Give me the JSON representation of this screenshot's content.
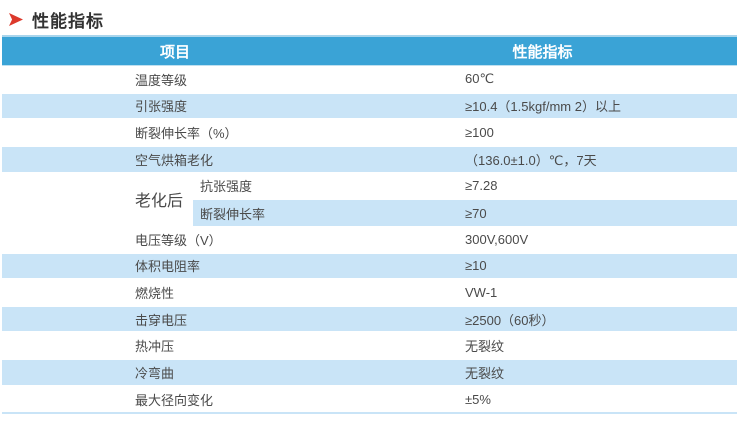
{
  "page": {
    "title": "性能指标"
  },
  "colors": {
    "header_bg": "#3AA3D6",
    "stripe_bg": "#C9E4F7",
    "accent_red": "#DC392C"
  },
  "table": {
    "header": {
      "col1": "项目",
      "col2": "性能指标"
    },
    "rows": [
      {
        "label": "温度等级",
        "value": "60℃",
        "striped": false
      },
      {
        "label": "引张强度",
        "value": "≥10.4（1.5kgf/mm 2）以上",
        "striped": true
      },
      {
        "label": "断裂伸长率（%）",
        "value": "≥100",
        "striped": false
      },
      {
        "label": "空气烘箱老化",
        "value": "（136.0±1.0）℃，7天",
        "striped": true
      },
      {
        "group": "老化后",
        "sub": [
          {
            "label": "抗张强度",
            "value": "≥7.28",
            "striped": false
          },
          {
            "label": "断裂伸长率",
            "value": "≥70",
            "striped": true
          }
        ]
      },
      {
        "label": "电压等级（V）",
        "value": "300V,600V",
        "striped": false
      },
      {
        "label": "体积电阻率",
        "value": "≥10",
        "striped": true
      },
      {
        "label": "燃烧性",
        "value": "VW-1",
        "striped": false
      },
      {
        "label": "击穿电压",
        "value": "≥2500（60秒）",
        "striped": true
      },
      {
        "label": "热冲压",
        "value": "无裂纹",
        "striped": false
      },
      {
        "label": "冷弯曲",
        "value": "无裂纹",
        "striped": true
      },
      {
        "label": "最大径向变化",
        "value": "±5%",
        "striped": false
      }
    ]
  }
}
